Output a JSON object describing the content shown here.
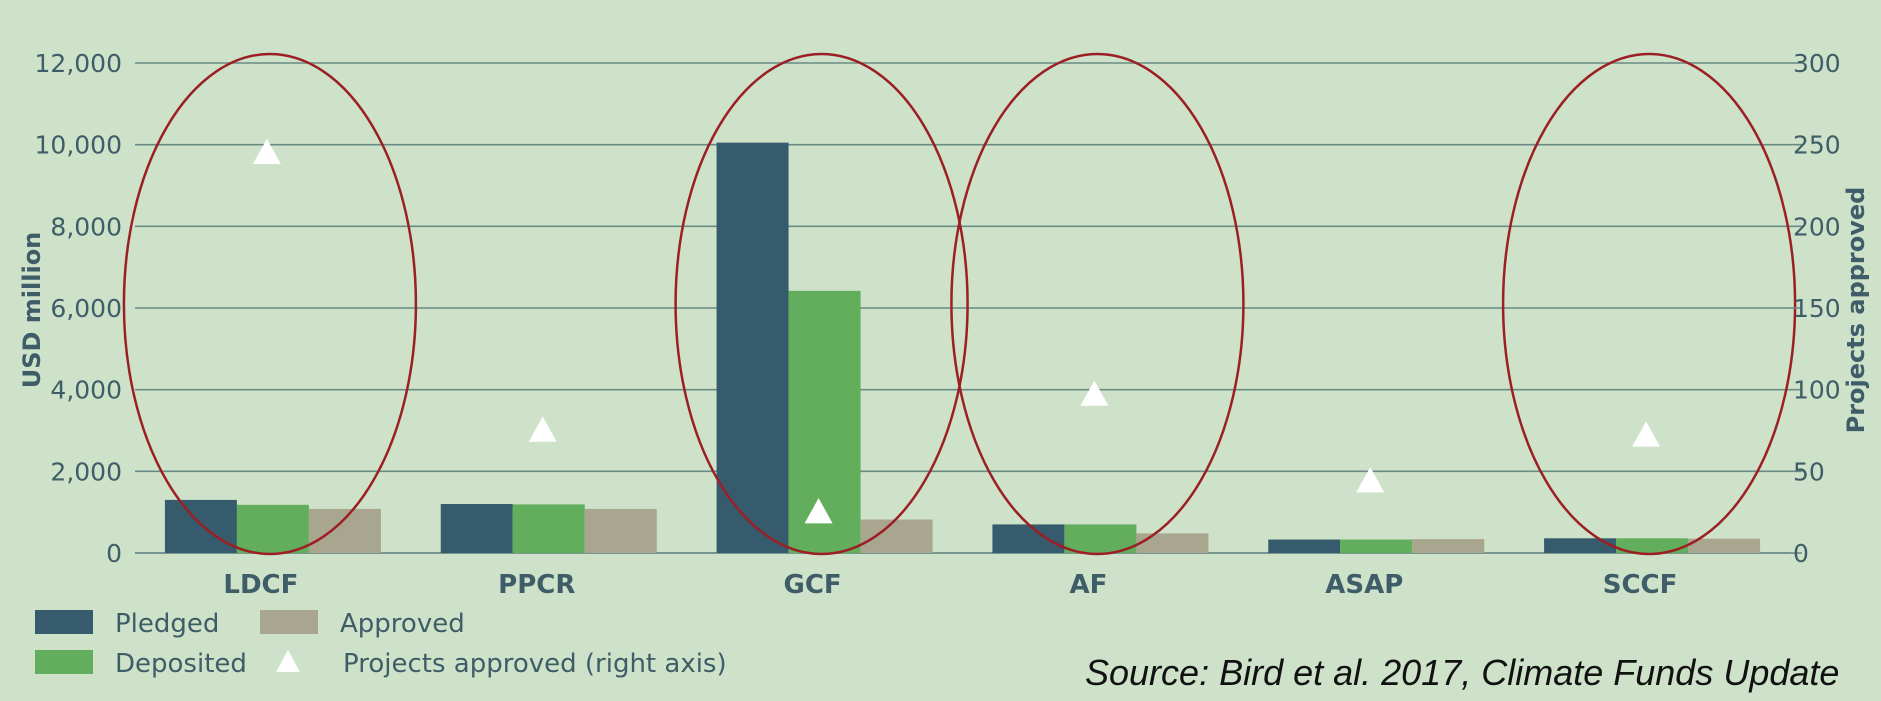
{
  "source_note": "Source: Bird et al. 2017, Climate Funds Update",
  "colors": {
    "background": "#cde2c8",
    "pledged": "#365b6c",
    "deposited": "#62ae5d",
    "approved": "#a9a68f",
    "projects_marker": "#ffffff",
    "highlight_ellipse": "#9b1f24",
    "axis_text": "#3f5d68"
  },
  "chart_data": {
    "type": "bar",
    "categories": [
      "LDCF",
      "PPCR",
      "GCF",
      "AF",
      "ASAP",
      "SCCF"
    ],
    "series": [
      {
        "name": "Pledged",
        "values": [
          1300,
          1200,
          10050,
          700,
          330,
          360
        ]
      },
      {
        "name": "Deposited",
        "values": [
          1180,
          1190,
          6420,
          700,
          330,
          360
        ]
      },
      {
        "name": "Approved",
        "values": [
          1080,
          1080,
          820,
          480,
          340,
          350
        ]
      }
    ],
    "secondary_series": {
      "name": "Projects approved (right axis)",
      "type": "scatter",
      "marker": "triangle",
      "values": [
        245,
        75,
        25,
        97,
        44,
        72
      ]
    },
    "ylabel": "USD million",
    "ylim": [
      0,
      12000
    ],
    "yticks": [
      "0",
      "2,000",
      "4,000",
      "6,000",
      "8,000",
      "10,000",
      "12,000"
    ],
    "y2label": "Projects approved",
    "y2lim": [
      0,
      300
    ],
    "y2ticks": [
      "0",
      "50",
      "100",
      "150",
      "200",
      "250",
      "300"
    ],
    "grid": true,
    "legend": {
      "placement": "bottom-left",
      "items": [
        "Pledged",
        "Approved",
        "Deposited",
        "Projects approved (right axis)"
      ]
    },
    "highlighted_categories": [
      "LDCF",
      "GCF",
      "AF",
      "SCCF"
    ]
  }
}
